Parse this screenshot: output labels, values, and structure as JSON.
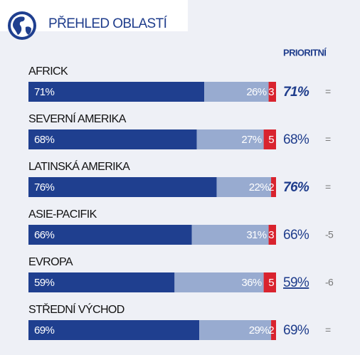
{
  "chart_data": {
    "type": "bar",
    "orientation": "horizontal",
    "stacked": true,
    "title": "PŘEHLED OBLASTÍ",
    "priority_header": "PRIORITNÍ",
    "categories": [
      "AFRICK",
      "SEVERNÍ AMERIKA",
      "LATINSKÁ AMERIKA",
      "ASIE-PACIFIK",
      "EVROPA",
      "STŘEDNÍ VÝCHOD"
    ],
    "xlim": [
      0,
      100
    ],
    "series": [
      {
        "color": "#1f3f8f",
        "values": [
          71,
          68,
          76,
          66,
          59,
          69
        ],
        "value_labels": [
          "71%",
          "68%",
          "76%",
          "66%",
          "59%",
          "69%"
        ]
      },
      {
        "color": "#98abd0",
        "values": [
          26,
          27,
          22,
          31,
          36,
          29
        ],
        "value_labels": [
          "26%",
          "27%",
          "22%",
          "31%",
          "36%",
          "29%"
        ]
      },
      {
        "color": "#d9232e",
        "values": [
          3,
          5,
          2,
          3,
          5,
          2
        ]
      }
    ],
    "priority": {
      "values": [
        71,
        68,
        76,
        66,
        59,
        69
      ],
      "value_labels": [
        "71%",
        "68%",
        "76%",
        "66%",
        "59%",
        "69%"
      ],
      "styles": [
        "bold-italic",
        "normal",
        "bold-italic",
        "normal",
        "underline",
        "normal"
      ],
      "color": "#1f3d8c"
    },
    "change": [
      "=",
      "=",
      "=",
      -5,
      -6,
      "="
    ]
  }
}
